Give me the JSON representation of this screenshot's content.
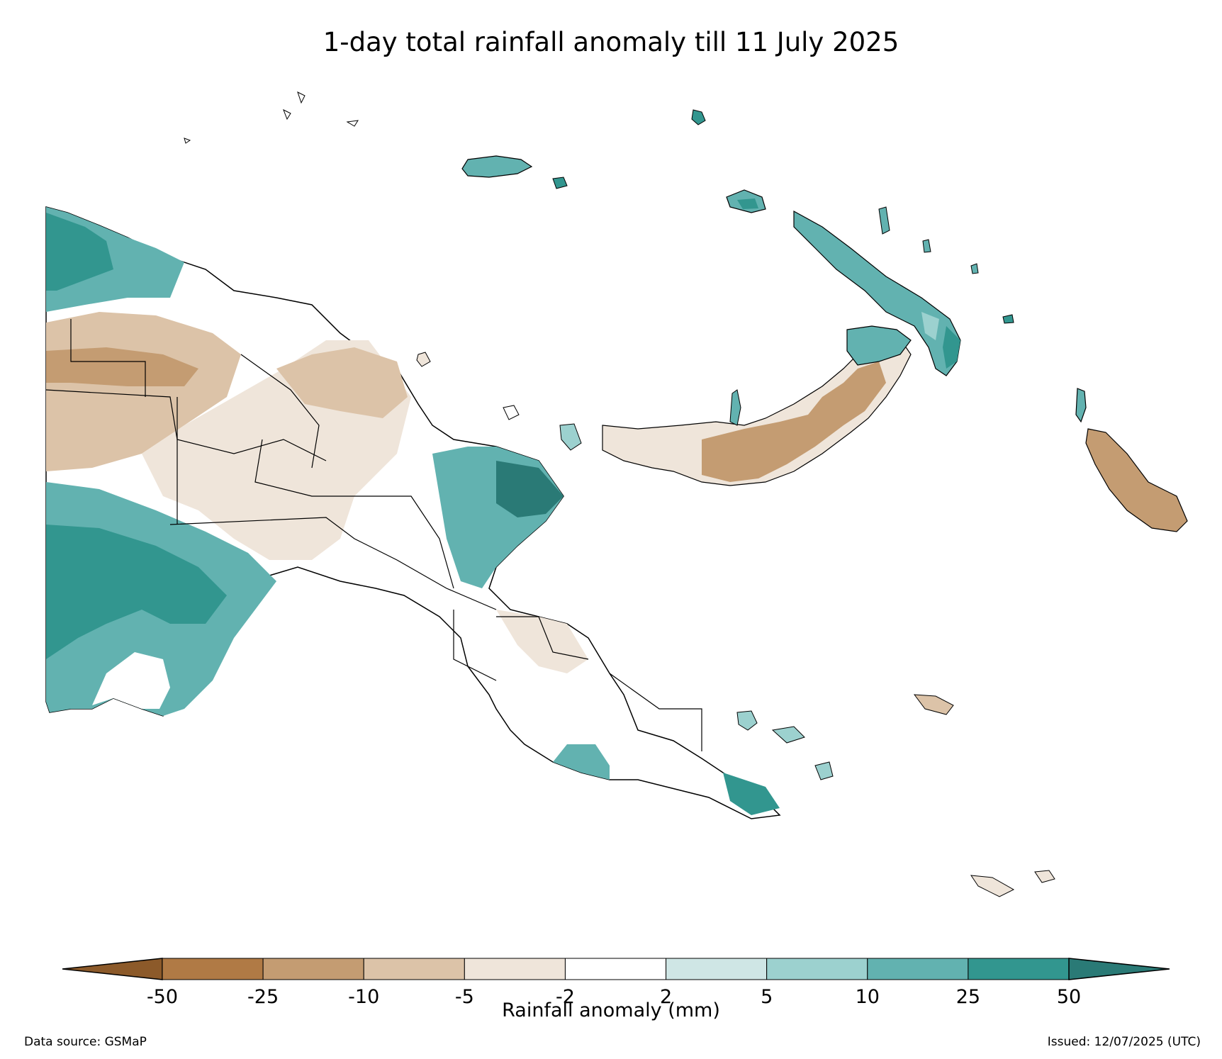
{
  "title": "1-day total rainfall anomaly till 11 July 2025",
  "colorbar": {
    "label": "Rainfall anomaly (mm)",
    "ticks": [
      "-50",
      "-25",
      "-10",
      "-5",
      "-2",
      "2",
      "5",
      "10",
      "25",
      "50"
    ],
    "colors": {
      "below_min": "#8c5a2a",
      "bins": [
        "#b07a45",
        "#c49c72",
        "#dcc3a8",
        "#efe5da",
        "#ffffff",
        "#cfe6e5",
        "#9cd1cf",
        "#62b2b0",
        "#32968f"
      ],
      "above_max": "#2a7a76"
    }
  },
  "footer": {
    "source": "Data source: GSMaP",
    "issued": "Issued: 12/07/2025 (UTC)"
  }
}
